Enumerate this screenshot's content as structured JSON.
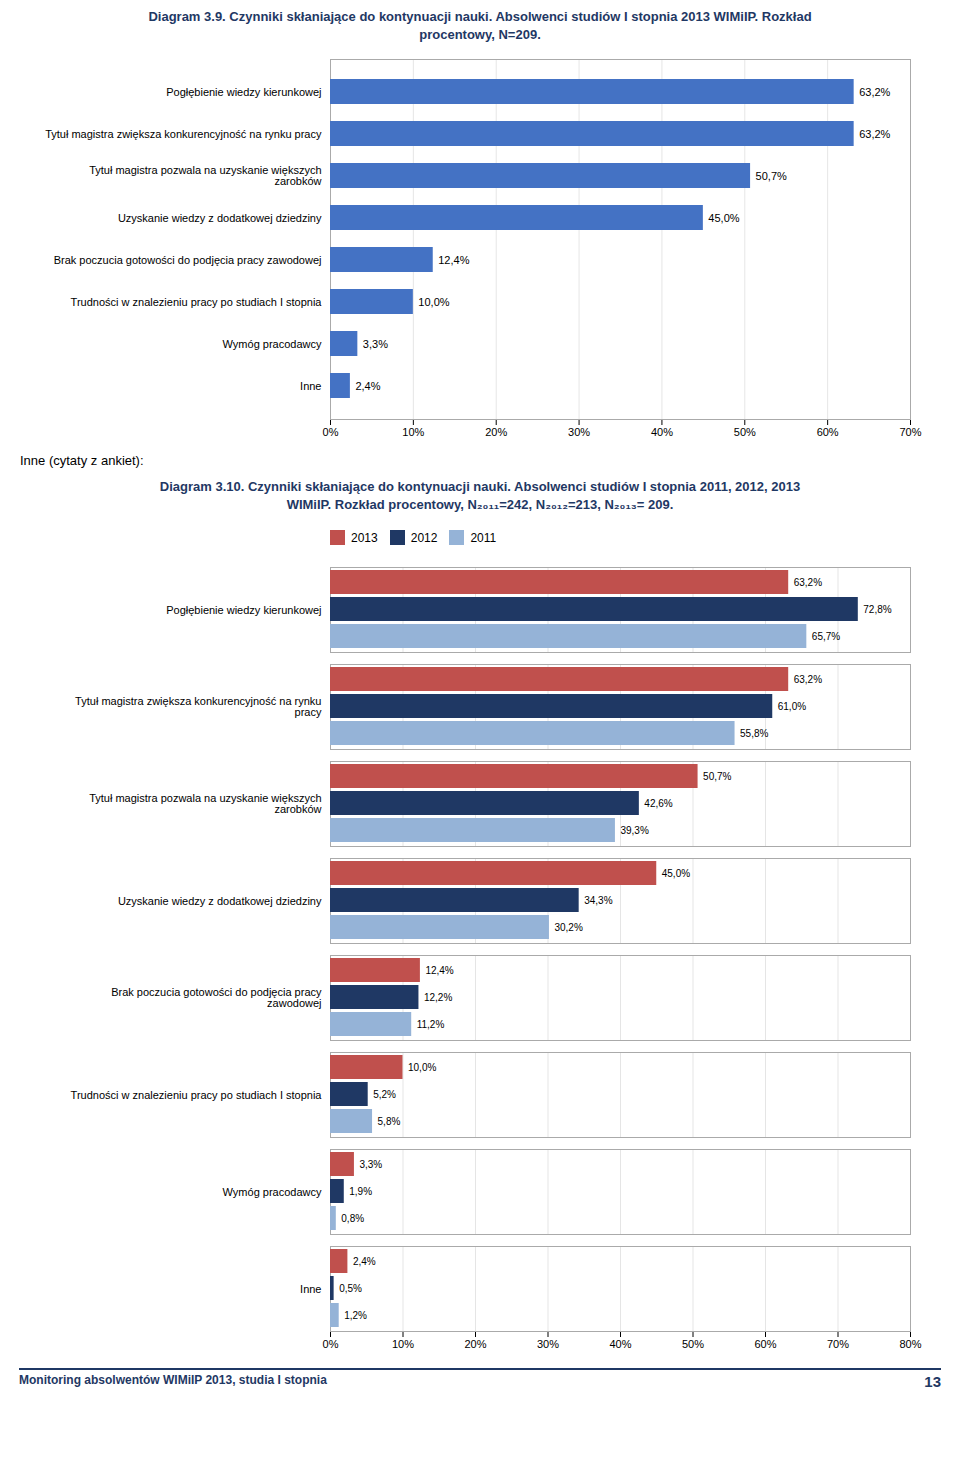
{
  "chart_data": [
    {
      "type": "bar",
      "orientation": "horizontal",
      "title": "Diagram 3.9. Czynniki skłaniające do kontynuacji nauki. Absolwenci studiów I stopnia 2013 WIMiIP. Rozkład\nprocentowy, N=209.",
      "categories": [
        "Pogłębienie wiedzy kierunkowej",
        "Tytuł magistra zwiększa konkurencyjność na rynku pracy",
        "Tytuł magistra pozwala na uzyskanie większych\nzarobków",
        "Uzyskanie wiedzy z dodatkowej dziedziny",
        "Brak poczucia gotowości do podjęcia pracy zawodowej",
        "Trudności w znalezieniu pracy po studiach I stopnia",
        "Wymóg pracodawcy",
        "Inne"
      ],
      "values": [
        63.2,
        63.2,
        50.7,
        45.0,
        12.4,
        10.0,
        3.3,
        2.4
      ],
      "value_labels": [
        "63,2%",
        "63,2%",
        "50,7%",
        "45,0%",
        "12,4%",
        "10,0%",
        "3,3%",
        "2,4%"
      ],
      "color": "#4472C4",
      "xlim": [
        0,
        70
      ],
      "xticks": [
        {
          "value": 0,
          "label": "0%"
        },
        {
          "value": 10,
          "label": "10%"
        },
        {
          "value": 20,
          "label": "20%"
        },
        {
          "value": 30,
          "label": "30%"
        },
        {
          "value": 40,
          "label": "40%"
        },
        {
          "value": 50,
          "label": "50%"
        },
        {
          "value": 60,
          "label": "60%"
        },
        {
          "value": 70,
          "label": "70%"
        }
      ],
      "grid": true,
      "data_labels": true,
      "annotations": [
        "Inne (cytaty z ankiet):"
      ]
    },
    {
      "type": "bar",
      "orientation": "horizontal",
      "title": "Diagram 3.10. Czynniki skłaniające do kontynuacji nauki. Absolwenci studiów I stopnia 2011, 2012, 2013\nWIMiIP. Rozkład procentowy, N₂₀₁₁=242, N₂₀₁₂=213,  N₂₀₁₃= 209.",
      "categories": [
        "Pogłębienie wiedzy kierunkowej",
        "Tytuł magistra zwiększa konkurencyjność na rynku\npracy",
        "Tytuł magistra pozwala na uzyskanie większych\nzarobków",
        "Uzyskanie wiedzy z dodatkowej dziedziny",
        "Brak poczucia gotowości do podjęcia pracy\nzawodowej",
        "Trudności w znalezieniu pracy po studiach I stopnia",
        "Wymóg pracodawcy",
        "Inne"
      ],
      "series": [
        {
          "name": "2013",
          "color": "#C0504D",
          "values": [
            63.2,
            63.2,
            50.7,
            45.0,
            12.4,
            10.0,
            3.3,
            2.4
          ],
          "value_labels": [
            "63,2%",
            "63,2%",
            "50,7%",
            "45,0%",
            "12,4%",
            "10,0%",
            "3,3%",
            "2,4%"
          ]
        },
        {
          "name": "2012",
          "color": "#1F3864",
          "values": [
            72.8,
            61.0,
            42.6,
            34.3,
            12.2,
            5.2,
            1.9,
            0.5
          ],
          "value_labels": [
            "72,8%",
            "61,0%",
            "42,6%",
            "34,3%",
            "12,2%",
            "5,2%",
            "1,9%",
            "0,5%"
          ]
        },
        {
          "name": "2011",
          "color": "#95B3D7",
          "values": [
            65.7,
            55.8,
            39.3,
            30.2,
            11.2,
            5.8,
            0.8,
            1.2
          ],
          "value_labels": [
            "65,7%",
            "55,8%",
            "39,3%",
            "30,2%",
            "11,2%",
            "5,8%",
            "0,8%",
            "1,2%"
          ]
        }
      ],
      "xlim": [
        0,
        80
      ],
      "xticks": [
        {
          "value": 0,
          "label": "0%"
        },
        {
          "value": 10,
          "label": "10%"
        },
        {
          "value": 20,
          "label": "20%"
        },
        {
          "value": 30,
          "label": "30%"
        },
        {
          "value": 40,
          "label": "40%"
        },
        {
          "value": 50,
          "label": "50%"
        },
        {
          "value": 60,
          "label": "60%"
        },
        {
          "value": 70,
          "label": "70%"
        },
        {
          "value": 80,
          "label": "80%"
        }
      ],
      "grid": true,
      "legend": "top",
      "data_labels": true,
      "annotations": [
        "Monitoring absolwentów WIMiIP 2013, studia I stopnia",
        "13"
      ]
    }
  ]
}
